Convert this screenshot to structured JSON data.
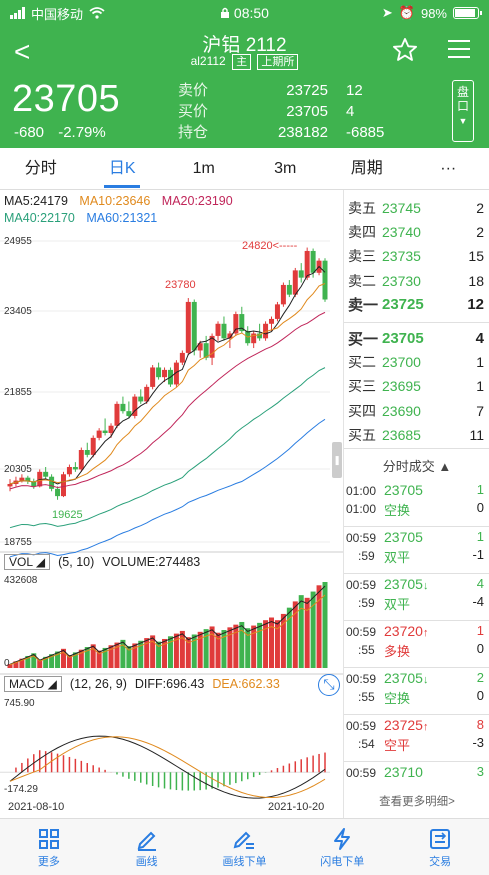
{
  "status_bar": {
    "carrier": "中国移动",
    "time": "08:50",
    "battery": "98%",
    "battery_level": 0.98
  },
  "header": {
    "title": "沪铝 2112",
    "code": "al2112",
    "tag_main": "主",
    "tag_exchange": "上期所",
    "price": "23705",
    "change": "-680",
    "change_pct": "-2.79%",
    "quote": [
      {
        "label": "卖价",
        "v1": "23725",
        "v2": "12"
      },
      {
        "label": "买价",
        "v1": "23705",
        "v2": "4"
      },
      {
        "label": "持仓",
        "v1": "238182",
        "v2": "-6885"
      }
    ],
    "pan_label": "盘\n口"
  },
  "tabs": [
    {
      "label": "分时",
      "active": false
    },
    {
      "label": "日K",
      "active": true
    },
    {
      "label": "1m",
      "active": false
    },
    {
      "label": "3m",
      "active": false
    },
    {
      "label": "周期",
      "active": false
    },
    {
      "label": "···",
      "active": false
    }
  ],
  "ma": {
    "ma5": "MA5:24179",
    "ma10": "MA10:23646",
    "ma20": "MA20:23190",
    "ma40": "MA40:22170",
    "ma60": "MA60:21321"
  },
  "kline_axis": {
    "y1": "24955",
    "y2": "23405",
    "y3": "21855",
    "y4": "20305",
    "y5": "18755"
  },
  "annotations": {
    "high": "24820<-----",
    "peak": "23780",
    "low": "19625"
  },
  "vol": {
    "label": "VOL",
    "params": "(5, 10)",
    "value": "VOLUME:274483",
    "ymax": "432608",
    "ymin": "0"
  },
  "macd": {
    "label": "MACD",
    "params": "(12, 26, 9)",
    "diff": "DIFF:696.43",
    "dea": "DEA:662.33",
    "ymax": "745.90",
    "ymin": "-174.29"
  },
  "dates": {
    "start": "2021-08-10",
    "end": "2021-10-20"
  },
  "orderbook": {
    "asks": [
      {
        "label": "卖五",
        "price": "23745",
        "qty": "2"
      },
      {
        "label": "卖四",
        "price": "23740",
        "qty": "2"
      },
      {
        "label": "卖三",
        "price": "23735",
        "qty": "15"
      },
      {
        "label": "卖二",
        "price": "23730",
        "qty": "18"
      },
      {
        "label": "卖一",
        "price": "23725",
        "qty": "12"
      }
    ],
    "bids": [
      {
        "label": "买一",
        "price": "23705",
        "qty": "4"
      },
      {
        "label": "买二",
        "price": "23700",
        "qty": "1"
      },
      {
        "label": "买三",
        "price": "23695",
        "qty": "1"
      },
      {
        "label": "买四",
        "price": "23690",
        "qty": "7"
      },
      {
        "label": "买五",
        "price": "23685",
        "qty": "11"
      }
    ]
  },
  "trades_title": "分时成交 ▲",
  "trades": [
    {
      "t1": "01:00",
      "price": "23705",
      "arrow": "",
      "q1": "1",
      "t2": "01:00",
      "type": "空换",
      "q2": "0",
      "color": "#3fb34f",
      "type_color": "#3fb34f"
    },
    {
      "t1": "00:59",
      "price": "23705",
      "arrow": "",
      "q1": "1",
      "t2": ":59",
      "type": "双平",
      "q2": "-1",
      "color": "#3fb34f",
      "type_color": "#3fb34f"
    },
    {
      "t1": "00:59",
      "price": "23705",
      "arrow": "↓",
      "q1": "4",
      "t2": ":59",
      "type": "双平",
      "q2": "-4",
      "color": "#3fb34f",
      "type_color": "#3fb34f"
    },
    {
      "t1": "00:59",
      "price": "23720",
      "arrow": "↑",
      "q1": "1",
      "t2": ":55",
      "type": "多换",
      "q2": "0",
      "color": "#e03b3b",
      "type_color": "#e03b3b"
    },
    {
      "t1": "00:59",
      "price": "23705",
      "arrow": "↓",
      "q1": "2",
      "t2": ":55",
      "type": "空换",
      "q2": "0",
      "color": "#3fb34f",
      "type_color": "#3fb34f"
    },
    {
      "t1": "00:59",
      "price": "23725",
      "arrow": "↑",
      "q1": "8",
      "t2": ":54",
      "type": "空平",
      "q2": "-3",
      "color": "#e03b3b",
      "type_color": "#e03b3b"
    },
    {
      "t1": "00:59",
      "price": "23710",
      "arrow": "",
      "q1": "3",
      "t2": "",
      "type": "",
      "q2": "",
      "color": "#3fb34f",
      "type_color": "#3fb34f"
    }
  ],
  "more_link": "查看更多明细>",
  "bottom_nav": [
    {
      "label": "更多",
      "icon": "grid-icon"
    },
    {
      "label": "画线",
      "icon": "pen-icon"
    },
    {
      "label": "画线下单",
      "icon": "pen-order-icon"
    },
    {
      "label": "闪电下单",
      "icon": "lightning-icon"
    },
    {
      "label": "交易",
      "icon": "trade-icon"
    }
  ],
  "colors": {
    "brand": "#3fb34f",
    "up": "#e03b3b",
    "down": "#3fb34f",
    "accent": "#2a7de1"
  }
}
